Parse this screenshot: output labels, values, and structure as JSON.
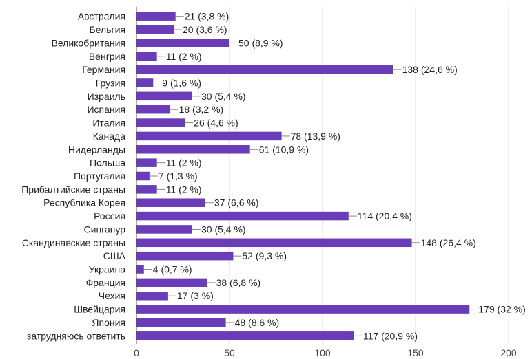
{
  "chart_data": {
    "type": "bar",
    "orientation": "horizontal",
    "categories": [
      "Австралия",
      "Бельгия",
      "Великобритания",
      "Венгрия",
      "Германия",
      "Грузия",
      "Израиль",
      "Испания",
      "Италия",
      "Канада",
      "Нидерланды",
      "Польша",
      "Португалия",
      "Прибалтийские страны",
      "Республика Корея",
      "Россия",
      "Сингапур",
      "Скандинавские страны",
      "США",
      "Украина",
      "Франция",
      "Чехия",
      "Швейцария",
      "Япония",
      "затрудняюсь ответить"
    ],
    "values": [
      21,
      20,
      50,
      11,
      138,
      9,
      30,
      18,
      26,
      78,
      61,
      11,
      7,
      11,
      37,
      114,
      30,
      148,
      52,
      4,
      38,
      17,
      179,
      48,
      117
    ],
    "data_labels": [
      "21 (3,8 %)",
      "20 (3,6 %)",
      "50 (8,9 %)",
      "11 (2 %)",
      "138 (24,6 %)",
      "9 (1,6 %)",
      "30 (5,4 %)",
      "18 (3,2 %)",
      "26 (4,6 %)",
      "78 (13,9 %)",
      "61 (10,9 %)",
      "11 (2 %)",
      "7 (1,3 %)",
      "11 (2 %)",
      "37 (6,6 %)",
      "114 (20,4 %)",
      "30 (5,4 %)",
      "148 (26,4 %)",
      "52 (9,3 %)",
      "4 (0,7 %)",
      "38 (6,8 %)",
      "17 (3 %)",
      "179 (32 %)",
      "48 (8,6 %)",
      "117 (20,9 %)"
    ],
    "x_ticks": [
      "0",
      "50",
      "100",
      "150",
      "200"
    ],
    "xlim": [
      0,
      200
    ],
    "bar_color": "#6a3cb8",
    "gridline_color": "#dddddd",
    "grid": true,
    "title": "",
    "xlabel": "",
    "ylabel": ""
  }
}
